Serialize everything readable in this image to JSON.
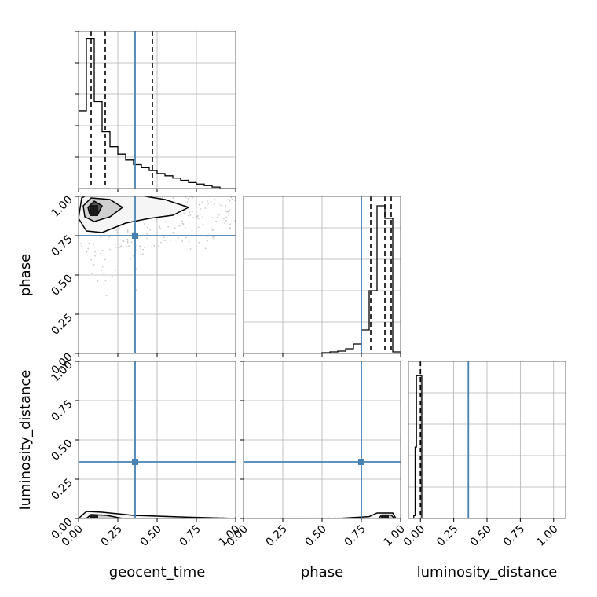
{
  "chart_data": {
    "type": "corner",
    "parameters": [
      "geocent_time",
      "phase",
      "luminosity_distance"
    ],
    "range": [
      0,
      1
    ],
    "tick_labels": [
      "0.00",
      "0.25",
      "0.50",
      "0.75",
      "1.00"
    ],
    "grid": true,
    "colors": {
      "truth": "#4682b4",
      "hist": "#000000",
      "grid": "#b0b0b0",
      "frame": "#666666",
      "scatter": "#9a9a9a",
      "density_light": "#f5f5f5",
      "density_mid": "#d0d0d0",
      "density_dark": "#555555",
      "density_core": "#1a1a1a"
    },
    "truth": {
      "geocent_time": 0.36,
      "phase": 0.75,
      "luminosity_distance": 0.36
    },
    "quantiles": {
      "geocent_time": [
        0.08,
        0.17,
        0.47
      ],
      "phase": [
        0.81,
        0.9,
        0.94
      ],
      "luminosity_distance": [
        0.0,
        0.0,
        0.0
      ]
    },
    "histograms": {
      "geocent_time": {
        "edges": [
          0.0,
          0.05,
          0.1,
          0.15,
          0.2,
          0.25,
          0.3,
          0.35,
          0.4,
          0.45,
          0.5,
          0.55,
          0.6,
          0.65,
          0.7,
          0.75,
          0.8,
          0.85,
          0.9,
          0.95,
          1.0
        ],
        "counts": [
          0.52,
          1.0,
          0.58,
          0.38,
          0.28,
          0.23,
          0.19,
          0.16,
          0.14,
          0.12,
          0.1,
          0.085,
          0.07,
          0.055,
          0.04,
          0.03,
          0.02,
          0.01,
          0.0,
          0.0
        ],
        "ymax": 1.05
      },
      "phase": {
        "edges": [
          0.0,
          0.05,
          0.1,
          0.15,
          0.2,
          0.25,
          0.3,
          0.35,
          0.4,
          0.45,
          0.5,
          0.55,
          0.6,
          0.65,
          0.7,
          0.75,
          0.8,
          0.85,
          0.9,
          0.95,
          1.0
        ],
        "counts": [
          0,
          0,
          0,
          0,
          0,
          0,
          0,
          0,
          0,
          0,
          0.005,
          0.01,
          0.015,
          0.03,
          0.06,
          0.15,
          0.4,
          0.94,
          0.86,
          0.01
        ],
        "ymax": 1.0
      },
      "luminosity_distance": {
        "edges": [
          -0.05,
          -0.04,
          -0.03,
          -0.02,
          -0.01,
          0.0,
          0.01
        ],
        "counts": [
          0.02,
          0.5,
          1.0,
          1.0,
          1.0,
          1.0
        ],
        "ymax": 1.1,
        "xlim": [
          -0.09,
          1.09
        ]
      }
    },
    "panels": [
      {
        "row": 0,
        "col": 0,
        "kind": "hist",
        "param": "geocent_time"
      },
      {
        "row": 1,
        "col": 0,
        "kind": "2d",
        "x": "geocent_time",
        "y": "phase"
      },
      {
        "row": 1,
        "col": 1,
        "kind": "hist",
        "param": "phase"
      },
      {
        "row": 2,
        "col": 0,
        "kind": "2d",
        "x": "geocent_time",
        "y": "luminosity_distance"
      },
      {
        "row": 2,
        "col": 1,
        "kind": "2d",
        "x": "phase",
        "y": "luminosity_distance"
      },
      {
        "row": 2,
        "col": 2,
        "kind": "hist",
        "param": "luminosity_distance"
      }
    ],
    "contours": {
      "geocent_time__phase": [
        {
          "level": "outer",
          "points": [
            [
              0.02,
              0.99
            ],
            [
              0.1,
              1.03
            ],
            [
              0.3,
              1.02
            ],
            [
              0.55,
              0.98
            ],
            [
              0.7,
              0.93
            ],
            [
              0.6,
              0.88
            ],
            [
              0.45,
              0.86
            ],
            [
              0.3,
              0.83
            ],
            [
              0.15,
              0.77
            ],
            [
              0.05,
              0.78
            ],
            [
              0.0,
              0.86
            ]
          ]
        },
        {
          "level": "inner",
          "points": [
            [
              0.03,
              0.94
            ],
            [
              0.08,
              0.99
            ],
            [
              0.2,
              0.98
            ],
            [
              0.28,
              0.93
            ],
            [
              0.2,
              0.87
            ],
            [
              0.1,
              0.84
            ],
            [
              0.04,
              0.87
            ]
          ]
        },
        {
          "level": "core",
          "points": [
            [
              0.06,
              0.93
            ],
            [
              0.1,
              0.97
            ],
            [
              0.15,
              0.94
            ],
            [
              0.12,
              0.88
            ],
            [
              0.07,
              0.89
            ]
          ]
        }
      ],
      "geocent_time__luminosity_distance": [
        {
          "level": "outer",
          "points": [
            [
              0.0,
              0.0
            ],
            [
              0.05,
              0.045
            ],
            [
              0.15,
              0.04
            ],
            [
              0.35,
              0.02
            ],
            [
              0.7,
              0.008
            ],
            [
              1.0,
              0.0
            ],
            [
              0.7,
              -0.008
            ],
            [
              0.35,
              -0.02
            ],
            [
              0.15,
              -0.04
            ],
            [
              0.05,
              -0.045
            ]
          ]
        },
        {
          "level": "inner",
          "points": [
            [
              0.05,
              0.0
            ],
            [
              0.08,
              0.025
            ],
            [
              0.18,
              0.02
            ],
            [
              0.28,
              0.0
            ],
            [
              0.18,
              -0.02
            ],
            [
              0.08,
              -0.025
            ]
          ]
        }
      ],
      "phase__luminosity_distance": [
        {
          "level": "outer",
          "points": [
            [
              0.6,
              0.0
            ],
            [
              0.8,
              0.012
            ],
            [
              0.85,
              0.035
            ],
            [
              0.95,
              0.035
            ],
            [
              0.97,
              0.0
            ],
            [
              0.95,
              -0.035
            ],
            [
              0.85,
              -0.035
            ],
            [
              0.8,
              -0.012
            ]
          ]
        },
        {
          "level": "inner",
          "points": [
            [
              0.86,
              0.0
            ],
            [
              0.88,
              0.022
            ],
            [
              0.94,
              0.022
            ],
            [
              0.96,
              0.0
            ],
            [
              0.94,
              -0.022
            ],
            [
              0.88,
              -0.022
            ]
          ]
        }
      ]
    },
    "cores": {
      "geocent_time__phase": {
        "x": 0.1,
        "y": 0.91,
        "w": 0.05,
        "h": 0.07
      },
      "geocent_time__luminosity_distance": {
        "x": 0.1,
        "y": 0.0,
        "w": 0.05,
        "h": 0.04
      },
      "phase__luminosity_distance": {
        "x": 0.9,
        "y": 0.0,
        "w": 0.05,
        "h": 0.04
      }
    },
    "scatter_clouds": {
      "geocent_time__phase": [
        {
          "x": [
            0.0,
            1.0
          ],
          "y": [
            0.62,
            1.0
          ],
          "n": 260
        },
        {
          "x": [
            0.05,
            0.45
          ],
          "y": [
            0.35,
            0.75
          ],
          "n": 40
        }
      ],
      "geocent_time__luminosity_distance": [
        {
          "x": [
            0.3,
            1.0
          ],
          "y": [
            -0.005,
            0.005
          ],
          "n": 80
        }
      ],
      "phase__luminosity_distance": [
        {
          "x": [
            0.28,
            0.8
          ],
          "y": [
            -0.004,
            0.004
          ],
          "n": 70
        }
      ]
    }
  }
}
